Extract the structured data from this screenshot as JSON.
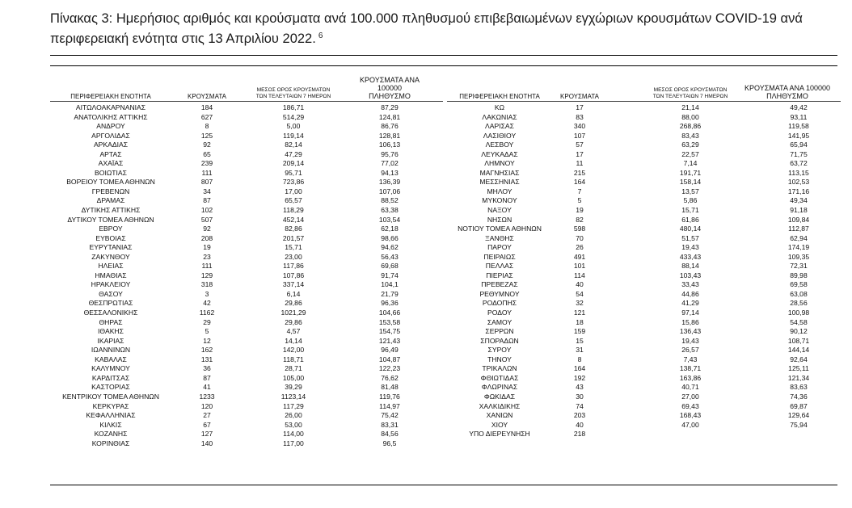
{
  "caption": {
    "text": "Πίνακας 3: Ημερήσιος αριθμός και κρούσματα ανά 100.000 πληθυσμού επιβεβαιωμένων εγχώριων κρουσμάτων COVID-19 ανά περιφερειακή ενότητα στις 13 Απριλίου 2022.",
    "footnote": "6"
  },
  "headers": {
    "region": "ΠΕΡΙΦΕΡΕΙΑΚΗ ΕΝΟΤΗΤΑ",
    "cases": "ΚΡΟΥΣΜΑΤΑ",
    "avg_line1": "ΜΕΣΟΣ ΟΡΟΣ ΚΡΟΥΣΜΑΤΩΝ",
    "avg_line2": "ΤΩΝ ΤΕΛΕΥΤΑΙΩΝ 7 ΗΜΕΡΩΝ",
    "per100k_line1": "ΚΡΟΥΣΜΑΤΑ ΑΝΑ 100000",
    "per100k_line2": "ΠΛΗΘΥΣΜΟ"
  },
  "left_rows": [
    [
      "ΑΙΤΩΛΟΑΚΑΡΝΑΝΙΑΣ",
      "184",
      "186,71",
      "87,29"
    ],
    [
      "ΑΝΑΤΟΛΙΚΗΣ ΑΤΤΙΚΗΣ",
      "627",
      "514,29",
      "124,81"
    ],
    [
      "ΑΝΔΡΟΥ",
      "8",
      "5,00",
      "86,76"
    ],
    [
      "ΑΡΓΟΛΙΔΑΣ",
      "125",
      "119,14",
      "128,81"
    ],
    [
      "ΑΡΚΑΔΙΑΣ",
      "92",
      "82,14",
      "106,13"
    ],
    [
      "ΑΡΤΑΣ",
      "65",
      "47,29",
      "95,76"
    ],
    [
      "ΑΧΑΪΑΣ",
      "239",
      "209,14",
      "77,02"
    ],
    [
      "ΒΟΙΩΤΙΑΣ",
      "111",
      "95,71",
      "94,13"
    ],
    [
      "ΒΟΡΕΙΟΥ ΤΟΜΕΑ ΑΘΗΝΩΝ",
      "807",
      "723,86",
      "136,39"
    ],
    [
      "ΓΡΕΒΕΝΩΝ",
      "34",
      "17,00",
      "107,06"
    ],
    [
      "ΔΡΑΜΑΣ",
      "87",
      "65,57",
      "88,52"
    ],
    [
      "ΔΥΤΙΚΗΣ ΑΤΤΙΚΗΣ",
      "102",
      "118,29",
      "63,38"
    ],
    [
      "ΔΥΤΙΚΟΥ ΤΟΜΕΑ ΑΘΗΝΩΝ",
      "507",
      "452,14",
      "103,54"
    ],
    [
      "ΕΒΡΟΥ",
      "92",
      "82,86",
      "62,18"
    ],
    [
      "ΕΥΒΟΙΑΣ",
      "208",
      "201,57",
      "98,66"
    ],
    [
      "ΕΥΡΥΤΑΝΙΑΣ",
      "19",
      "15,71",
      "94,62"
    ],
    [
      "ΖΑΚΥΝΘΟΥ",
      "23",
      "23,00",
      "56,43"
    ],
    [
      "ΗΛΕΙΑΣ",
      "111",
      "117,86",
      "69,68"
    ],
    [
      "ΗΜΑΘΙΑΣ",
      "129",
      "107,86",
      "91,74"
    ],
    [
      "ΗΡΑΚΛΕΙΟΥ",
      "318",
      "337,14",
      "104,1"
    ],
    [
      "ΘΑΣΟΥ",
      "3",
      "6,14",
      "21,79"
    ],
    [
      "ΘΕΣΠΡΩΤΙΑΣ",
      "42",
      "29,86",
      "96,36"
    ],
    [
      "ΘΕΣΣΑΛΟΝΙΚΗΣ",
      "1162",
      "1021,29",
      "104,66"
    ],
    [
      "ΘΗΡΑΣ",
      "29",
      "29,86",
      "153,58"
    ],
    [
      "ΙΘΑΚΗΣ",
      "5",
      "4,57",
      "154,75"
    ],
    [
      "ΙΚΑΡΙΑΣ",
      "12",
      "14,14",
      "121,43"
    ],
    [
      "ΙΩΑΝΝΙΝΩΝ",
      "162",
      "142,00",
      "96,49"
    ],
    [
      "ΚΑΒΑΛΑΣ",
      "131",
      "118,71",
      "104,87"
    ],
    [
      "ΚΑΛΥΜΝΟΥ",
      "36",
      "28,71",
      "122,23"
    ],
    [
      "ΚΑΡΔΙΤΣΑΣ",
      "87",
      "105,00",
      "76,62"
    ],
    [
      "ΚΑΣΤΟΡΙΑΣ",
      "41",
      "39,29",
      "81,48"
    ],
    [
      "ΚΕΝΤΡΙΚΟΥ ΤΟΜΕΑ ΑΘΗΝΩΝ",
      "1233",
      "1123,14",
      "119,76"
    ],
    [
      "ΚΕΡΚΥΡΑΣ",
      "120",
      "117,29",
      "114,97"
    ],
    [
      "ΚΕΦΑΛΛΗΝΙΑΣ",
      "27",
      "26,00",
      "75,42"
    ],
    [
      "ΚΙΛΚΙΣ",
      "67",
      "53,00",
      "83,31"
    ],
    [
      "ΚΟΖΑΝΗΣ",
      "127",
      "114,00",
      "84,56"
    ],
    [
      "ΚΟΡΙΝΘΙΑΣ",
      "140",
      "117,00",
      "96,5"
    ]
  ],
  "right_rows": [
    [
      "ΚΩ",
      "17",
      "21,14",
      "49,42"
    ],
    [
      "ΛΑΚΩΝΙΑΣ",
      "83",
      "88,00",
      "93,11"
    ],
    [
      "ΛΑΡΙΣΑΣ",
      "340",
      "268,86",
      "119,58"
    ],
    [
      "ΛΑΣΙΘΙΟΥ",
      "107",
      "83,43",
      "141,95"
    ],
    [
      "ΛΕΣΒΟΥ",
      "57",
      "63,29",
      "65,94"
    ],
    [
      "ΛΕΥΚΑΔΑΣ",
      "17",
      "22,57",
      "71,75"
    ],
    [
      "ΛΗΜΝΟΥ",
      "11",
      "7,14",
      "63,72"
    ],
    [
      "ΜΑΓΝΗΣΙΑΣ",
      "215",
      "191,71",
      "113,15"
    ],
    [
      "ΜΕΣΣΗΝΙΑΣ",
      "164",
      "158,14",
      "102,53"
    ],
    [
      "ΜΗΛΟΥ",
      "7",
      "13,57",
      "171,16"
    ],
    [
      "ΜΥΚΟΝΟΥ",
      "5",
      "5,86",
      "49,34"
    ],
    [
      "ΝΑΞΟΥ",
      "19",
      "15,71",
      "91,18"
    ],
    [
      "ΝΗΣΩΝ",
      "82",
      "61,86",
      "109,84"
    ],
    [
      "ΝΟΤΙΟΥ ΤΟΜΕΑ ΑΘΗΝΩΝ",
      "598",
      "480,14",
      "112,87"
    ],
    [
      "ΞΑΝΘΗΣ",
      "70",
      "51,57",
      "62,94"
    ],
    [
      "ΠΑΡΟΥ",
      "26",
      "19,43",
      "174,19"
    ],
    [
      "ΠΕΙΡΑΙΩΣ",
      "491",
      "433,43",
      "109,35"
    ],
    [
      "ΠΕΛΛΑΣ",
      "101",
      "88,14",
      "72,31"
    ],
    [
      "ΠΙΕΡΙΑΣ",
      "114",
      "103,43",
      "89,98"
    ],
    [
      "ΠΡΕΒΕΖΑΣ",
      "40",
      "33,43",
      "69,58"
    ],
    [
      "ΡΕΘΥΜΝΟΥ",
      "54",
      "44,86",
      "63,08"
    ],
    [
      "ΡΟΔΟΠΗΣ",
      "32",
      "41,29",
      "28,56"
    ],
    [
      "ΡΟΔΟΥ",
      "121",
      "97,14",
      "100,98"
    ],
    [
      "ΣΑΜΟΥ",
      "18",
      "15,86",
      "54,58"
    ],
    [
      "ΣΕΡΡΩΝ",
      "159",
      "136,43",
      "90,12"
    ],
    [
      "ΣΠΟΡΑΔΩΝ",
      "15",
      "19,43",
      "108,71"
    ],
    [
      "ΣΥΡΟΥ",
      "31",
      "26,57",
      "144,14"
    ],
    [
      "ΤΗΝΟΥ",
      "8",
      "7,43",
      "92,64"
    ],
    [
      "ΤΡΙΚΑΛΩΝ",
      "164",
      "138,71",
      "125,11"
    ],
    [
      "ΦΘΙΩΤΙΔΑΣ",
      "192",
      "163,86",
      "121,34"
    ],
    [
      "ΦΛΩΡΙΝΑΣ",
      "43",
      "40,71",
      "83,63"
    ],
    [
      "ΦΩΚΙΔΑΣ",
      "30",
      "27,00",
      "74,36"
    ],
    [
      "ΧΑΛΚΙΔΙΚΗΣ",
      "74",
      "69,43",
      "69,87"
    ],
    [
      "ΧΑΝΙΩΝ",
      "203",
      "168,43",
      "129,64"
    ],
    [
      "ΧΙΟΥ",
      "40",
      "47,00",
      "75,94"
    ],
    [
      "ΥΠΟ ΔΙΕΡΕΥΝΗΣΗ",
      "218",
      "",
      ""
    ]
  ]
}
